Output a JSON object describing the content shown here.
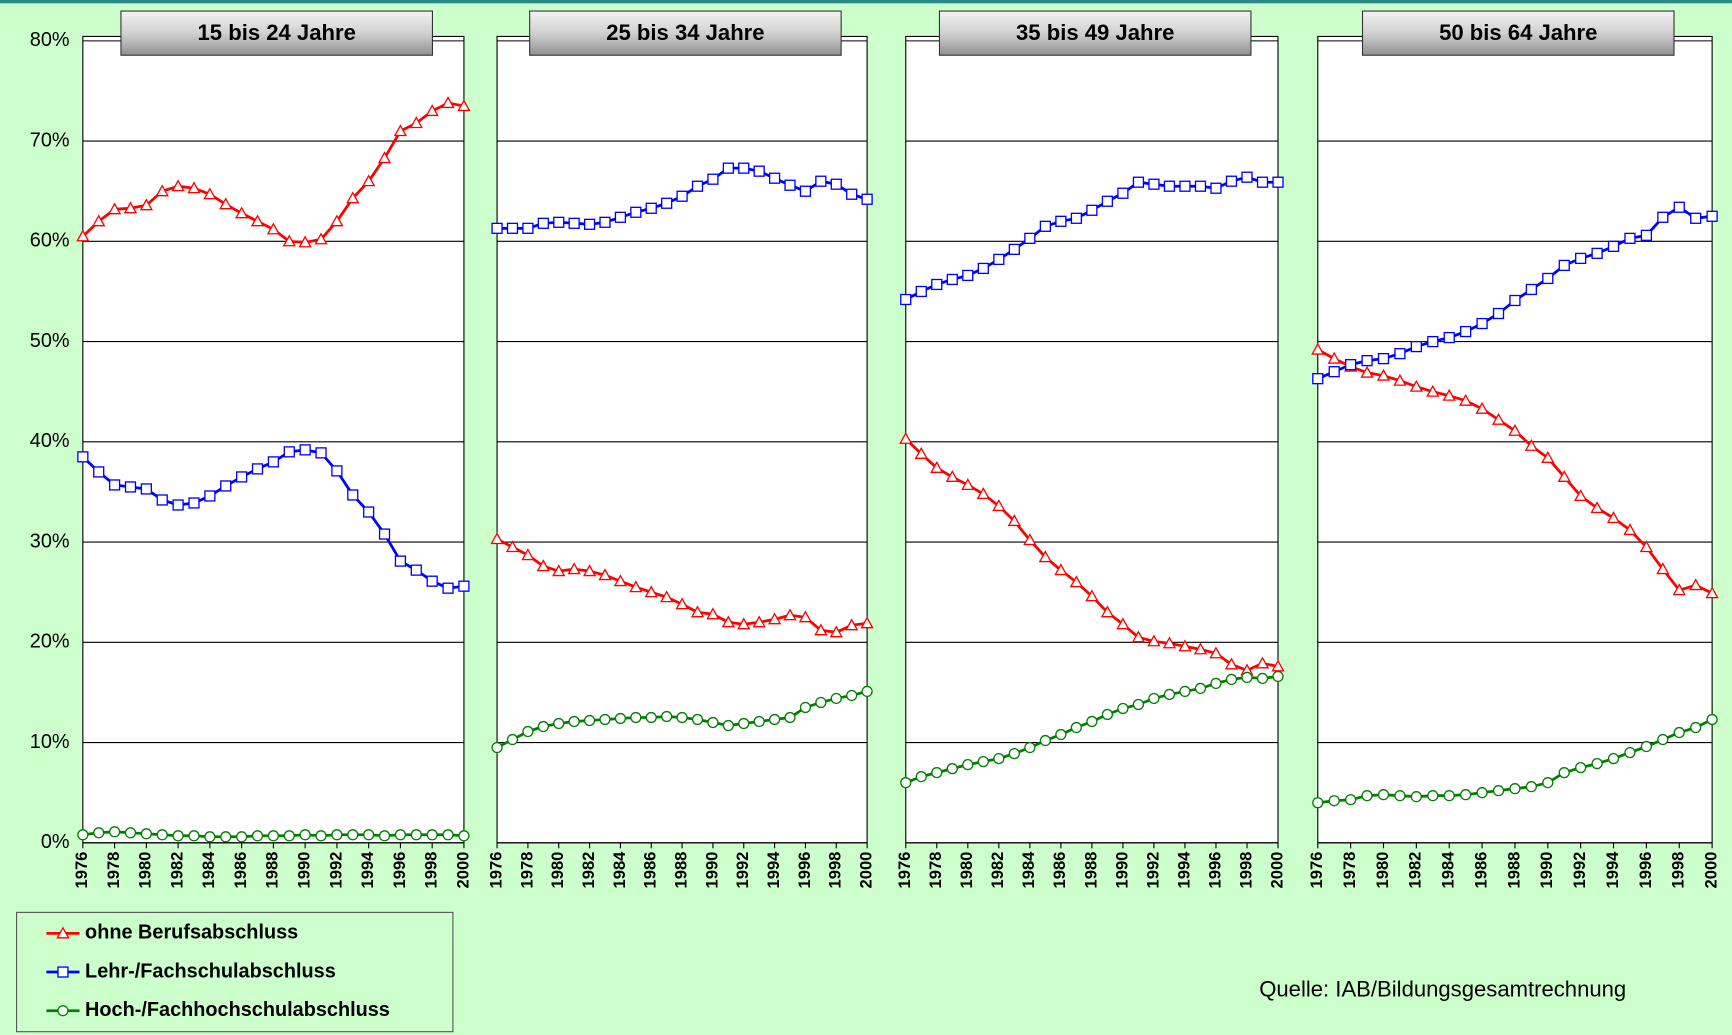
{
  "chart_data": {
    "type": "line",
    "x": [
      1976,
      1977,
      1978,
      1979,
      1980,
      1981,
      1982,
      1983,
      1984,
      1985,
      1986,
      1987,
      1988,
      1989,
      1990,
      1991,
      1992,
      1993,
      1994,
      1995,
      1996,
      1997,
      1998,
      1999,
      2000
    ],
    "xticks": [
      1976,
      1978,
      1980,
      1982,
      1984,
      1986,
      1988,
      1990,
      1992,
      1994,
      1996,
      1998,
      2000
    ],
    "ylim": [
      0,
      80
    ],
    "yticks": [
      {
        "value": 0,
        "label": "0%"
      },
      {
        "value": 10,
        "label": "10%"
      },
      {
        "value": 20,
        "label": "20%"
      },
      {
        "value": 30,
        "label": "30%"
      },
      {
        "value": 40,
        "label": "40%"
      },
      {
        "value": 50,
        "label": "50%"
      },
      {
        "value": 60,
        "label": "60%"
      },
      {
        "value": 70,
        "label": "70%"
      },
      {
        "value": 80,
        "label": "80%"
      }
    ],
    "grid": true,
    "series": [
      {
        "name": "ohne Berufsabschluss",
        "color": "#ff0000",
        "marker": "triangle"
      },
      {
        "name": "Lehr-/Fachschulabschluss",
        "color": "#0000ff",
        "marker": "square"
      },
      {
        "name": "Hoch-/Fachhochschulabschluss",
        "color": "#008000",
        "marker": "circle"
      }
    ],
    "panels": [
      {
        "title": "15 bis 24 Jahre",
        "values": [
          [
            60.5,
            62,
            63.2,
            63.3,
            63.6,
            65,
            65.5,
            65.3,
            64.7,
            63.7,
            62.8,
            62,
            61.2,
            60,
            59.9,
            60.2,
            62,
            64.3,
            66,
            68.3,
            71,
            71.8,
            73,
            73.8,
            73.5
          ],
          [
            38.5,
            37,
            35.7,
            35.5,
            35.3,
            34.2,
            33.7,
            33.9,
            34.6,
            35.6,
            36.5,
            37.3,
            38,
            39,
            39.2,
            38.9,
            37.1,
            34.7,
            33,
            30.8,
            28.1,
            27.2,
            26.1,
            25.4,
            25.6
          ],
          [
            0.8,
            1,
            1.1,
            1,
            0.9,
            0.8,
            0.7,
            0.7,
            0.6,
            0.6,
            0.6,
            0.7,
            0.7,
            0.7,
            0.8,
            0.7,
            0.8,
            0.8,
            0.8,
            0.7,
            0.8,
            0.8,
            0.8,
            0.8,
            0.7
          ]
        ]
      },
      {
        "title": "25 bis 34 Jahre",
        "values": [
          [
            30.3,
            29.5,
            28.7,
            27.6,
            27.1,
            27.3,
            27.1,
            26.7,
            26.1,
            25.5,
            25,
            24.5,
            23.8,
            23,
            22.8,
            22,
            21.8,
            22,
            22.3,
            22.7,
            22.5,
            21.2,
            21,
            21.7,
            21.9
          ],
          [
            61.3,
            61.3,
            61.3,
            61.8,
            61.9,
            61.8,
            61.7,
            61.9,
            62.4,
            62.9,
            63.3,
            63.8,
            64.5,
            65.5,
            66.2,
            67.3,
            67.3,
            67,
            66.3,
            65.6,
            65,
            66,
            65.7,
            64.7,
            64.2
          ],
          [
            9.5,
            10.3,
            11.1,
            11.6,
            11.9,
            12.1,
            12.2,
            12.3,
            12.4,
            12.5,
            12.5,
            12.6,
            12.5,
            12.3,
            12,
            11.7,
            11.9,
            12.1,
            12.3,
            12.5,
            13.5,
            14,
            14.4,
            14.7,
            15.1
          ]
        ]
      },
      {
        "title": "35 bis 49 Jahre",
        "values": [
          [
            40.3,
            38.8,
            37.4,
            36.5,
            35.7,
            34.8,
            33.6,
            32.1,
            30.2,
            28.5,
            27.2,
            26,
            24.6,
            23,
            21.8,
            20.5,
            20.1,
            19.9,
            19.6,
            19.3,
            18.9,
            17.8,
            17.2,
            17.9,
            17.6
          ],
          [
            54.2,
            55,
            55.7,
            56.2,
            56.6,
            57.3,
            58.2,
            59.2,
            60.3,
            61.5,
            62,
            62.3,
            63.1,
            64,
            64.8,
            65.9,
            65.7,
            65.5,
            65.5,
            65.5,
            65.3,
            66,
            66.4,
            65.9,
            65.9
          ],
          [
            6,
            6.6,
            7,
            7.4,
            7.8,
            8.1,
            8.4,
            8.9,
            9.5,
            10.2,
            10.8,
            11.5,
            12.1,
            12.8,
            13.4,
            13.8,
            14.4,
            14.8,
            15.1,
            15.4,
            15.9,
            16.3,
            16.5,
            16.4,
            16.6
          ]
        ]
      },
      {
        "title": "50 bis 64 Jahre",
        "values": [
          [
            49.2,
            48.3,
            47.5,
            46.9,
            46.6,
            46.1,
            45.5,
            45,
            44.6,
            44.1,
            43.3,
            42.2,
            41.1,
            39.6,
            38.4,
            36.5,
            34.6,
            33.4,
            32.4,
            31.2,
            29.5,
            27.3,
            25.2,
            25.7,
            24.9
          ],
          [
            46.3,
            47,
            47.7,
            48.1,
            48.3,
            48.8,
            49.5,
            50,
            50.4,
            51,
            51.8,
            52.8,
            54.1,
            55.2,
            56.3,
            57.6,
            58.3,
            58.8,
            59.5,
            60.3,
            60.6,
            62.4,
            63.4,
            62.3,
            62.5
          ],
          [
            4,
            4.2,
            4.3,
            4.7,
            4.8,
            4.7,
            4.6,
            4.7,
            4.7,
            4.8,
            5,
            5.2,
            5.4,
            5.6,
            6,
            7,
            7.5,
            7.9,
            8.4,
            9,
            9.6,
            10.3,
            11,
            11.5,
            12.3
          ]
        ]
      }
    ],
    "source": "Quelle: IAB/Bildungsgesamtrechnung"
  }
}
